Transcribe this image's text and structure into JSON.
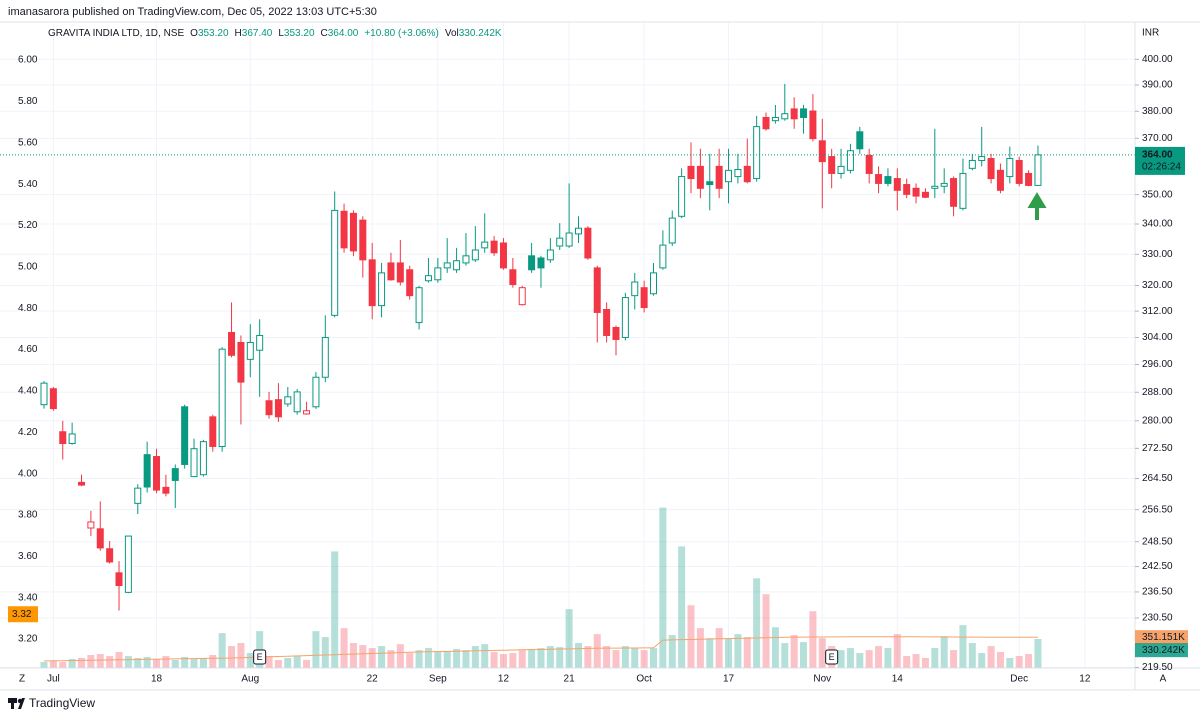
{
  "chart_data": {
    "type": "candlestick",
    "publisher": "imanasarora published on TradingView.com, Dec 05, 2022 13:03 UTC+5:30",
    "header": {
      "symbol": "GRAVITA INDIA LTD, 1D, NSE",
      "fields": [
        {
          "key": "O",
          "value": "353.20"
        },
        {
          "key": "H",
          "value": "367.40"
        },
        {
          "key": "L",
          "value": "353.20"
        },
        {
          "key": "C",
          "value": "364.00"
        }
      ],
      "change": "+10.80 (+3.06%)",
      "volume_key": "Vol",
      "volume_value": "330.242K"
    },
    "currency": "INR",
    "brand": "TradingView",
    "corner_labels": [
      "Z",
      "A"
    ],
    "log": true,
    "grid": true,
    "up_color": "#089981",
    "down_color": "#f23645",
    "volume_ma_color": "#f5a36a",
    "left_marker_color": "#ff9800",
    "ylim": [
      219.4,
      415
    ],
    "yticks": [
      {
        "value": 400,
        "label": "400.00"
      },
      {
        "value": 390,
        "label": "390.00"
      },
      {
        "value": 380,
        "label": "380.00"
      },
      {
        "value": 370,
        "label": "370.00"
      },
      {
        "value": 350,
        "label": "350.00"
      },
      {
        "value": 340,
        "label": "340.00"
      },
      {
        "value": 330,
        "label": "330.00"
      },
      {
        "value": 320,
        "label": "320.00"
      },
      {
        "value": 312,
        "label": "312.00"
      },
      {
        "value": 304,
        "label": "304.00"
      },
      {
        "value": 296,
        "label": "296.00"
      },
      {
        "value": 288,
        "label": "288.00"
      },
      {
        "value": 280,
        "label": "280.00"
      },
      {
        "value": 272.5,
        "label": "272.50"
      },
      {
        "value": 264.5,
        "label": "264.50"
      },
      {
        "value": 256.5,
        "label": "256.50"
      },
      {
        "value": 248.5,
        "label": "248.50"
      },
      {
        "value": 242.5,
        "label": "242.50"
      },
      {
        "value": 236.5,
        "label": "236.50"
      },
      {
        "value": 230.5,
        "label": "230.50"
      },
      {
        "value": 219.5,
        "label": "219.50"
      }
    ],
    "y2lim": [
      3.06,
      6.184
    ],
    "y2ticks": [
      {
        "value": 6,
        "label": "6.00"
      },
      {
        "value": 5.8,
        "label": "5.80"
      },
      {
        "value": 5.6,
        "label": "5.60"
      },
      {
        "value": 5.4,
        "label": "5.40"
      },
      {
        "value": 5.2,
        "label": "5.20"
      },
      {
        "value": 5,
        "label": "5.00"
      },
      {
        "value": 4.8,
        "label": "4.80"
      },
      {
        "value": 4.6,
        "label": "4.60"
      },
      {
        "value": 4.4,
        "label": "4.40"
      },
      {
        "value": 4.2,
        "label": "4.20"
      },
      {
        "value": 4,
        "label": "4.00"
      },
      {
        "value": 3.8,
        "label": "3.80"
      },
      {
        "value": 3.6,
        "label": "3.60"
      },
      {
        "value": 3.4,
        "label": "3.40"
      },
      {
        "value": 3.2,
        "label": "3.20"
      }
    ],
    "left_marker": {
      "value": 3.32,
      "label": "3.32"
    },
    "xticks": [
      {
        "value": 1,
        "label": "Jul"
      },
      {
        "value": 12,
        "label": "18"
      },
      {
        "value": 22,
        "label": "Aug"
      },
      {
        "value": 35,
        "label": "22"
      },
      {
        "value": 42,
        "label": "Sep"
      },
      {
        "value": 49,
        "label": "12"
      },
      {
        "value": 56,
        "label": "21"
      },
      {
        "value": 64,
        "label": "Oct"
      },
      {
        "value": 73,
        "label": "17"
      },
      {
        "value": 83,
        "label": "Nov"
      },
      {
        "value": 91,
        "label": "14"
      },
      {
        "value": 104,
        "label": "Dec"
      },
      {
        "value": 111,
        "label": "12"
      }
    ],
    "events": [
      {
        "index": 23,
        "label": "E"
      },
      {
        "index": 84,
        "label": "E"
      }
    ],
    "open": [
      284.5,
      289.0,
      277.0,
      273.8,
      263.5,
      251.9,
      251.7,
      246.8,
      241.0,
      236.4,
      258.1,
      270.8,
      270.3,
      262.2,
      267.1,
      283.9,
      265.0,
      265.5,
      281.1,
      273.0,
      305.5,
      302.5,
      297.5,
      300.2,
      285.6,
      285.9,
      284.7,
      282.5,
      281.9,
      283.9,
      292.3,
      310.7,
      344.3,
      343.6,
      341.3,
      328.2,
      313.7,
      327.2,
      327.2,
      325.0,
      308.5,
      321.5,
      321.8,
      325.6,
      325.0,
      327.2,
      328.2,
      332.1,
      334.3,
      333.7,
      325.0,
      314.0,
      329.5,
      328.8,
      328.2,
      332.7,
      332.7,
      336.7,
      338.6,
      325.6,
      312.5,
      307.0,
      304.0,
      316.8,
      319.3,
      317.4,
      325.6,
      333.7,
      342.6,
      359.9,
      359.9,
      354.5,
      359.9,
      354.5,
      356.3,
      359.9,
      355.6,
      377.7,
      376.5,
      377.2,
      380.9,
      380.9,
      380.1,
      369.1,
      363.4,
      357.4,
      358.5,
      372.4,
      363.8,
      357.0,
      356.3,
      355.6,
      353.5,
      352.2,
      350.8,
      352.2,
      352.9,
      355.6,
      345.3,
      359.2,
      362.0,
      362.7,
      358.5,
      356.3,
      362.0,
      357.4,
      353.2
    ],
    "high": [
      291.2,
      289.5,
      280.0,
      279.5,
      265.5,
      256.2,
      258.6,
      248.7,
      243.8,
      249.9,
      263.0,
      274.3,
      272.4,
      265.5,
      268.2,
      284.5,
      275.1,
      274.8,
      281.7,
      301.1,
      314.7,
      304.6,
      308.0,
      309.5,
      288.1,
      290.6,
      289.5,
      288.9,
      285.3,
      293.8,
      310.7,
      351.1,
      346.9,
      344.6,
      342.6,
      333.7,
      327.2,
      330.5,
      334.7,
      326.3,
      319.9,
      328.8,
      328.8,
      335.3,
      332.1,
      337.0,
      339.3,
      343.6,
      336.0,
      335.3,
      328.8,
      319.9,
      333.7,
      329.5,
      335.3,
      340.3,
      353.9,
      342.6,
      339.3,
      326.3,
      314.7,
      307.6,
      317.7,
      324.0,
      321.5,
      327.2,
      337.9,
      344.6,
      359.2,
      368.5,
      366.2,
      364.4,
      366.2,
      366.2,
      364.4,
      369.9,
      378.3,
      379.5,
      382.4,
      390.4,
      385.3,
      382.4,
      386.5,
      377.2,
      366.2,
      366.2,
      368.0,
      374.2,
      366.2,
      359.9,
      359.2,
      359.2,
      355.6,
      353.9,
      352.2,
      373.5,
      359.2,
      356.3,
      362.7,
      364.4,
      374.2,
      364.4,
      360.9,
      367.0,
      363.4,
      358.5,
      367.4
    ],
    "low": [
      283.4,
      282.8,
      269.5,
      273.5,
      262.5,
      249.9,
      246.3,
      243.2,
      232.2,
      236.2,
      255.4,
      260.9,
      260.7,
      259.9,
      256.9,
      267.1,
      265.0,
      265.0,
      271.6,
      271.6,
      298.1,
      279.0,
      292.3,
      286.7,
      280.6,
      279.7,
      283.9,
      281.7,
      281.7,
      283.3,
      290.9,
      310.1,
      330.5,
      329.4,
      322.5,
      309.5,
      310.1,
      321.5,
      320.0,
      315.6,
      306.4,
      320.9,
      320.9,
      324.0,
      324.0,
      326.3,
      327.5,
      330.5,
      329.5,
      325.0,
      319.3,
      313.7,
      324.0,
      319.3,
      327.2,
      331.4,
      332.1,
      333.7,
      328.2,
      302.5,
      302.5,
      298.7,
      303.1,
      312.5,
      311.6,
      316.8,
      325.0,
      332.7,
      342.0,
      350.5,
      348.8,
      344.6,
      348.8,
      347.0,
      353.9,
      353.9,
      354.5,
      372.8,
      375.4,
      376.5,
      373.5,
      371.7,
      368.9,
      345.3,
      352.2,
      355.6,
      357.4,
      364.4,
      353.9,
      350.5,
      352.9,
      344.6,
      348.8,
      347.0,
      348.8,
      348.8,
      350.5,
      342.6,
      344.6,
      358.5,
      359.9,
      353.9,
      350.5,
      353.9,
      352.9,
      352.9,
      353.2
    ],
    "close": [
      290.6,
      283.4,
      273.8,
      276.4,
      262.8,
      253.4,
      247.0,
      243.6,
      238.0,
      249.9,
      262.0,
      262.3,
      261.5,
      260.7,
      264.0,
      268.2,
      272.4,
      274.3,
      273.0,
      300.5,
      298.7,
      290.9,
      302.5,
      304.6,
      281.7,
      281.1,
      286.7,
      288.1,
      282.8,
      292.3,
      304.0,
      344.6,
      332.1,
      331.1,
      328.2,
      313.7,
      324.0,
      321.8,
      321.1,
      316.8,
      319.3,
      323.1,
      325.6,
      327.2,
      327.9,
      329.5,
      331.4,
      334.0,
      330.5,
      325.6,
      320.3,
      319.3,
      325.0,
      325.6,
      331.4,
      335.3,
      337.0,
      338.6,
      328.8,
      311.6,
      304.6,
      303.4,
      316.2,
      321.1,
      313.1,
      324.0,
      333.0,
      342.0,
      356.3,
      355.6,
      352.2,
      353.5,
      352.2,
      358.5,
      358.8,
      354.5,
      374.3,
      373.5,
      377.7,
      379.1,
      377.2,
      377.7,
      369.9,
      361.6,
      357.4,
      359.9,
      365.5,
      366.2,
      357.4,
      353.9,
      353.9,
      351.5,
      350.1,
      349.5,
      349.1,
      352.9,
      353.9,
      346.0,
      357.4,
      362.0,
      363.4,
      355.6,
      351.5,
      362.7,
      353.9,
      353.2,
      364.0
    ],
    "last_price_label": "364.00",
    "countdown": "02:26:24",
    "volume": [
      68,
      79,
      68,
      102,
      114,
      148,
      159,
      136,
      182,
      136,
      114,
      125,
      102,
      136,
      91,
      125,
      102,
      114,
      148,
      397,
      250,
      284,
      170,
      420,
      136,
      91,
      114,
      136,
      91,
      420,
      352,
      1328,
      454,
      284,
      261,
      227,
      250,
      204,
      272,
      170,
      204,
      227,
      182,
      193,
      216,
      204,
      250,
      272,
      182,
      159,
      170,
      204,
      216,
      227,
      250,
      238,
      670,
      284,
      250,
      386,
      250,
      204,
      250,
      227,
      204,
      227,
      1827,
      375,
      1385,
      715,
      454,
      340,
      454,
      340,
      386,
      352,
      1021,
      840,
      465,
      284,
      375,
      295,
      647,
      340,
      250,
      204,
      227,
      170,
      204,
      250,
      227,
      386,
      136,
      159,
      114,
      227,
      363,
      204,
      488,
      284,
      170,
      250,
      182,
      114,
      136,
      159,
      330.242
    ],
    "volume_last_label": "330.242K",
    "volume_ma": [
      80,
      82,
      83,
      85,
      87,
      89,
      90,
      92,
      94,
      95,
      97,
      99,
      100,
      102,
      104,
      106,
      107,
      109,
      111,
      112,
      114,
      117,
      121,
      124,
      128,
      131,
      134,
      138,
      141,
      145,
      148,
      151,
      155,
      158,
      162,
      165,
      168,
      172,
      175,
      179,
      182,
      184,
      187,
      189,
      191,
      193,
      196,
      198,
      200,
      202,
      205,
      207,
      209,
      211,
      214,
      216,
      218,
      220,
      223,
      225,
      227,
      227,
      228,
      228,
      229,
      229,
      318,
      320,
      323,
      325,
      328,
      330,
      333,
      335,
      337,
      340,
      342,
      345,
      347,
      350,
      352,
      352,
      353,
      353,
      354,
      354,
      355,
      355,
      355,
      356,
      356,
      356,
      355,
      355,
      354,
      354,
      353,
      353,
      352,
      352,
      352,
      351,
      351,
      351,
      351,
      351,
      351.151
    ],
    "volume_ma_last_label": "351.151K"
  }
}
